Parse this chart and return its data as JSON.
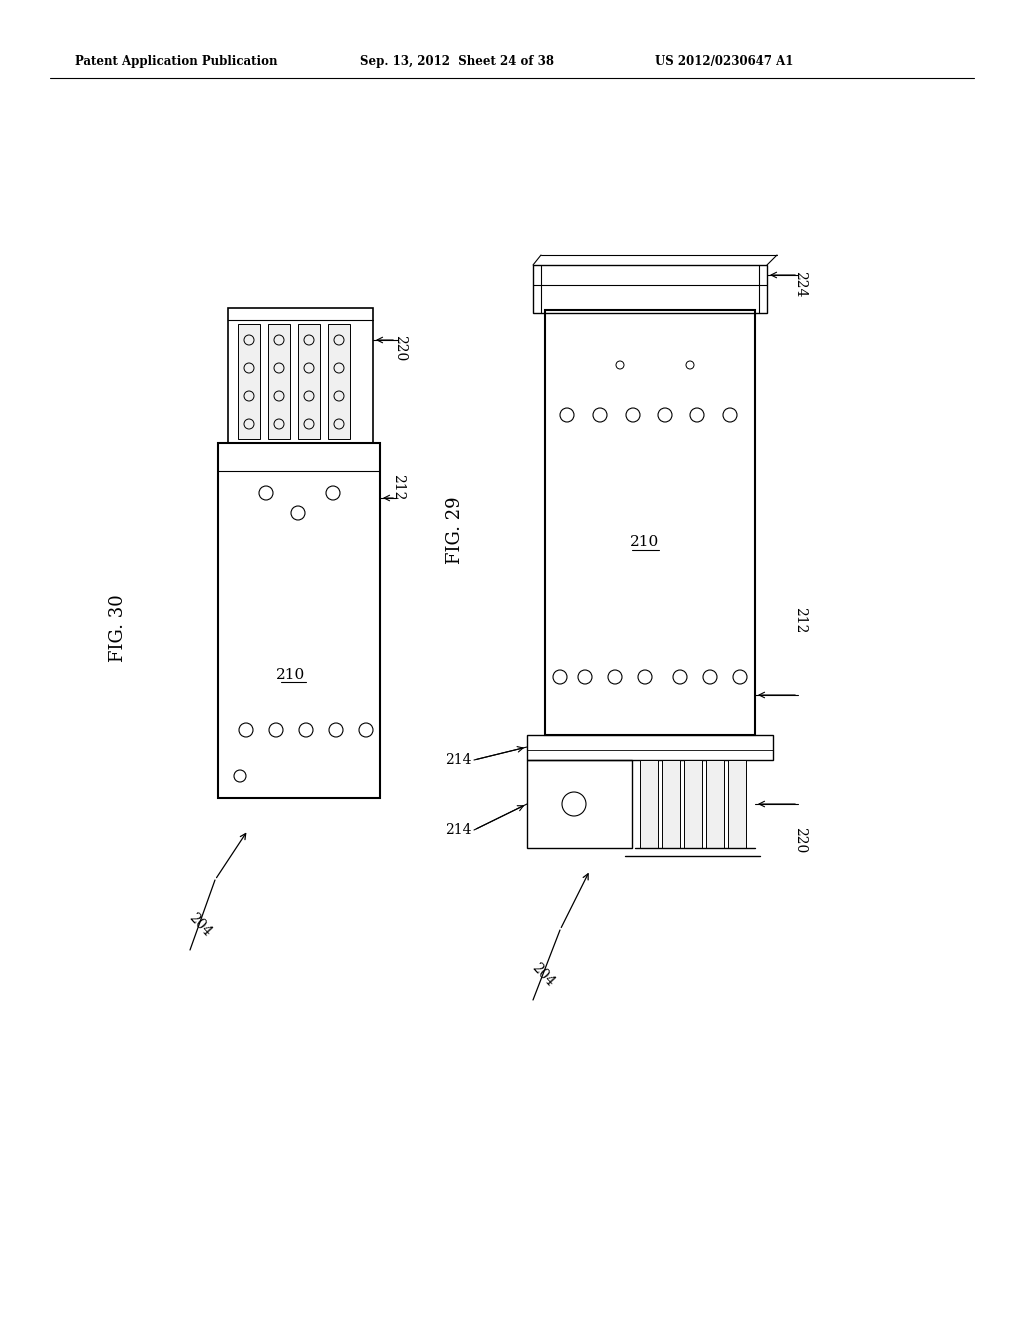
{
  "bg_color": "#ffffff",
  "line_color": "#000000",
  "header_left": "Patent Application Publication",
  "header_center": "Sep. 13, 2012  Sheet 24 of 38",
  "header_right": "US 2012/0230647 A1"
}
